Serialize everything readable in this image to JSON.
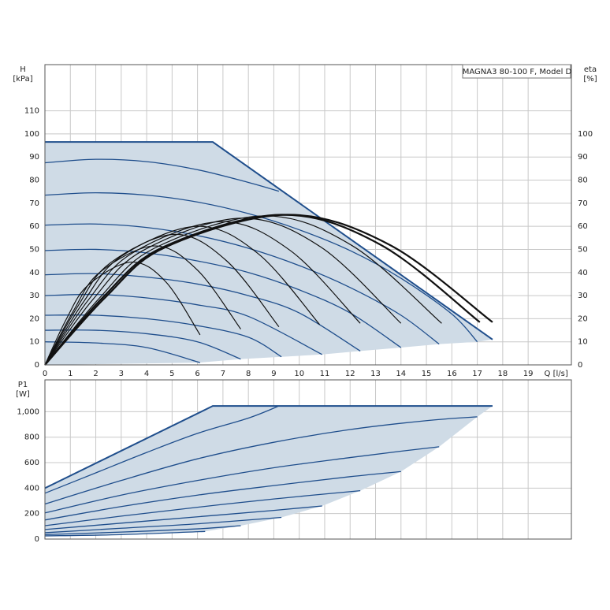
{
  "chart_data": [
    {
      "type": "line",
      "title": "MAGNA3 80-100 F, Model D",
      "y_label": "H",
      "y_unit": "[kPa]",
      "y2_label": "eta",
      "y2_unit": "[%]",
      "x_label": "Q [l/s]",
      "xlim": [
        0,
        20.7
      ],
      "xticks": [
        0,
        1,
        2,
        3,
        4,
        5,
        6,
        7,
        8,
        9,
        10,
        11,
        12,
        13,
        14,
        15,
        16,
        17,
        18,
        19
      ],
      "ylim": [
        0,
        130
      ],
      "yticks": [
        0,
        10,
        20,
        30,
        40,
        50,
        60,
        70,
        80,
        90,
        100,
        110
      ],
      "y2lim": [
        0,
        130
      ],
      "y2ticks": [
        0,
        10,
        20,
        30,
        40,
        50,
        60,
        70,
        80,
        90,
        100
      ],
      "grid": true,
      "area": {
        "color": "#cfdbe6",
        "line_color": "#1f4e8c",
        "x": [
          0,
          6.6,
          17.6,
          17,
          15.5,
          14,
          12.4,
          10.9,
          9.3,
          7.7,
          6.1,
          0
        ],
        "values": [
          96.5,
          96.5,
          11,
          10,
          9,
          7.5,
          6,
          4.5,
          3.5,
          2.5,
          1,
          0
        ]
      },
      "series": [
        {
          "color": "#1f4e8c",
          "width": 1.3,
          "x": [
            0,
            2,
            4,
            6,
            8,
            9.2
          ],
          "values": [
            87.5,
            89,
            88,
            84.5,
            79,
            75.2
          ]
        },
        {
          "color": "#1f4e8c",
          "width": 1.3,
          "x": [
            0,
            2,
            4,
            6,
            8,
            10,
            12,
            14,
            16,
            17
          ],
          "values": [
            73.5,
            74.5,
            73.5,
            70.5,
            65.5,
            58.5,
            49.5,
            37.5,
            22,
            10
          ]
        },
        {
          "color": "#1f4e8c",
          "width": 1.3,
          "x": [
            0,
            2,
            4,
            6,
            8,
            10,
            12,
            14,
            15.5
          ],
          "values": [
            60.5,
            61,
            59.5,
            56,
            50.5,
            43,
            33.5,
            21.5,
            9
          ]
        },
        {
          "color": "#1f4e8c",
          "width": 1.3,
          "x": [
            0,
            2,
            4,
            6,
            8,
            10,
            12,
            14
          ],
          "values": [
            49.5,
            50,
            48.5,
            45,
            40,
            32.5,
            22.5,
            7.5
          ]
        },
        {
          "color": "#1f4e8c",
          "width": 1.3,
          "x": [
            0,
            2,
            4,
            6,
            8,
            10,
            12.4
          ],
          "values": [
            39,
            39.5,
            38,
            35,
            30,
            22.5,
            6
          ]
        },
        {
          "color": "#1f4e8c",
          "width": 1.3,
          "x": [
            0,
            2,
            4,
            6,
            8,
            10.9
          ],
          "values": [
            30,
            30.5,
            29,
            26,
            21,
            4.5
          ]
        },
        {
          "color": "#1f4e8c",
          "width": 1.3,
          "x": [
            0,
            2,
            4,
            6,
            8,
            9.3
          ],
          "values": [
            21.5,
            21.5,
            20,
            17,
            12,
            3.5
          ]
        },
        {
          "color": "#1f4e8c",
          "width": 1.3,
          "x": [
            0,
            2,
            4,
            6,
            7.7
          ],
          "values": [
            15,
            15,
            13.5,
            10,
            2.5
          ]
        },
        {
          "color": "#1f4e8c",
          "width": 1.3,
          "x": [
            0,
            2,
            4,
            6.1
          ],
          "values": [
            10,
            9.5,
            7.5,
            1
          ]
        },
        {
          "color": "#111111",
          "width": 1.2,
          "axis": "y2",
          "x": [
            0,
            0.85,
            1.7,
            3.4,
            4.75,
            6.1
          ],
          "values": [
            0,
            20,
            34.5,
            44.5,
            36,
            13
          ]
        },
        {
          "color": "#111111",
          "width": 1.2,
          "axis": "y2",
          "x": [
            0,
            1.1,
            2.15,
            4.3,
            6,
            7.7
          ],
          "values": [
            0,
            23,
            40,
            51.5,
            41,
            15.5
          ]
        },
        {
          "color": "#111111",
          "width": 1.2,
          "axis": "y2",
          "x": [
            0,
            1.3,
            2.55,
            5.1,
            7.15,
            9.2
          ],
          "values": [
            0,
            25.5,
            44,
            56.5,
            45,
            16.5
          ]
        },
        {
          "color": "#111111",
          "width": 1.2,
          "axis": "y2",
          "x": [
            0,
            1.5,
            3,
            6,
            8.4,
            10.8
          ],
          "values": [
            0,
            27,
            47,
            60,
            48,
            17.5
          ]
        },
        {
          "color": "#111111",
          "width": 1.2,
          "axis": "y2",
          "x": [
            0,
            1.7,
            3.45,
            6.9,
            9.65,
            12.4
          ],
          "values": [
            0,
            28,
            48.5,
            62,
            49.5,
            18
          ]
        },
        {
          "color": "#111111",
          "width": 1.2,
          "axis": "y2",
          "x": [
            0,
            1.9,
            3.85,
            7.7,
            10.85,
            14
          ],
          "values": [
            0,
            28.5,
            49.5,
            63.5,
            51,
            18
          ]
        },
        {
          "color": "#111111",
          "width": 1.2,
          "axis": "y2",
          "x": [
            0,
            2.15,
            4.3,
            8.6,
            12.1,
            15.6
          ],
          "values": [
            0,
            29,
            50.5,
            64.5,
            51.5,
            18
          ]
        },
        {
          "color": "#111111",
          "width": 2.2,
          "axis": "y2",
          "x": [
            0,
            2.3,
            4.65,
            9.3,
            13.2,
            17.1
          ],
          "values": [
            0,
            29.5,
            51,
            65,
            52,
            18.5
          ]
        },
        {
          "color": "#111111",
          "width": 2.2,
          "axis": "y2",
          "x": [
            0,
            2.4,
            4.75,
            9.5,
            13.55,
            17.6
          ],
          "values": [
            0,
            29.5,
            51,
            65,
            52,
            18.5
          ]
        }
      ]
    },
    {
      "type": "line",
      "y_label": "P1",
      "y_unit": "[W]",
      "xlim": [
        0,
        20.7
      ],
      "xticks": [
        0,
        1,
        2,
        3,
        4,
        5,
        6,
        7,
        8,
        9,
        10,
        11,
        12,
        13,
        14,
        15,
        16,
        17,
        18,
        19
      ],
      "ylim": [
        0,
        1250
      ],
      "yticks": [
        0,
        200,
        400,
        600,
        800,
        {
          "value": 1000,
          "label": "1,000"
        }
      ],
      "grid": true,
      "area": {
        "color": "#cfdbe6",
        "line_color": "#1f4e8c",
        "x": [
          0,
          6.6,
          17.6,
          17,
          15.5,
          14,
          12.4,
          10.9,
          9.3,
          7.7,
          6.3,
          0
        ],
        "values": [
          400,
          1045,
          1045,
          960,
          725,
          530,
          380,
          260,
          170,
          105,
          60,
          25
        ]
      },
      "series": [
        {
          "color": "#1f4e8c",
          "width": 1.3,
          "x": [
            0,
            2,
            4,
            6,
            8,
            9.2
          ],
          "values": [
            360,
            520,
            680,
            830,
            950,
            1045
          ]
        },
        {
          "color": "#1f4e8c",
          "width": 1.3,
          "x": [
            0,
            3,
            6,
            9,
            12,
            15,
            17
          ],
          "values": [
            275,
            460,
            630,
            760,
            860,
            930,
            960
          ]
        },
        {
          "color": "#1f4e8c",
          "width": 1.3,
          "x": [
            0,
            3,
            6,
            9,
            12,
            14,
            15.5
          ],
          "values": [
            205,
            345,
            460,
            560,
            640,
            690,
            725
          ]
        },
        {
          "color": "#1f4e8c",
          "width": 1.3,
          "x": [
            0,
            3,
            6,
            9,
            12,
            14
          ],
          "values": [
            150,
            255,
            345,
            420,
            490,
            530
          ]
        },
        {
          "color": "#1f4e8c",
          "width": 1.3,
          "x": [
            0,
            3,
            6,
            9,
            12.4
          ],
          "values": [
            105,
            180,
            250,
            315,
            380
          ]
        },
        {
          "color": "#1f4e8c",
          "width": 1.3,
          "x": [
            0,
            3,
            6,
            9,
            10.9
          ],
          "values": [
            75,
            125,
            175,
            225,
            260
          ]
        },
        {
          "color": "#1f4e8c",
          "width": 1.3,
          "x": [
            0,
            3,
            6,
            9.3
          ],
          "values": [
            50,
            85,
            120,
            170
          ]
        },
        {
          "color": "#1f4e8c",
          "width": 1.3,
          "x": [
            0,
            3,
            6,
            7.7
          ],
          "values": [
            35,
            55,
            80,
            105
          ]
        },
        {
          "color": "#1f4e8c",
          "width": 1.3,
          "x": [
            0,
            3,
            6.3
          ],
          "values": [
            25,
            35,
            60
          ]
        }
      ]
    }
  ]
}
